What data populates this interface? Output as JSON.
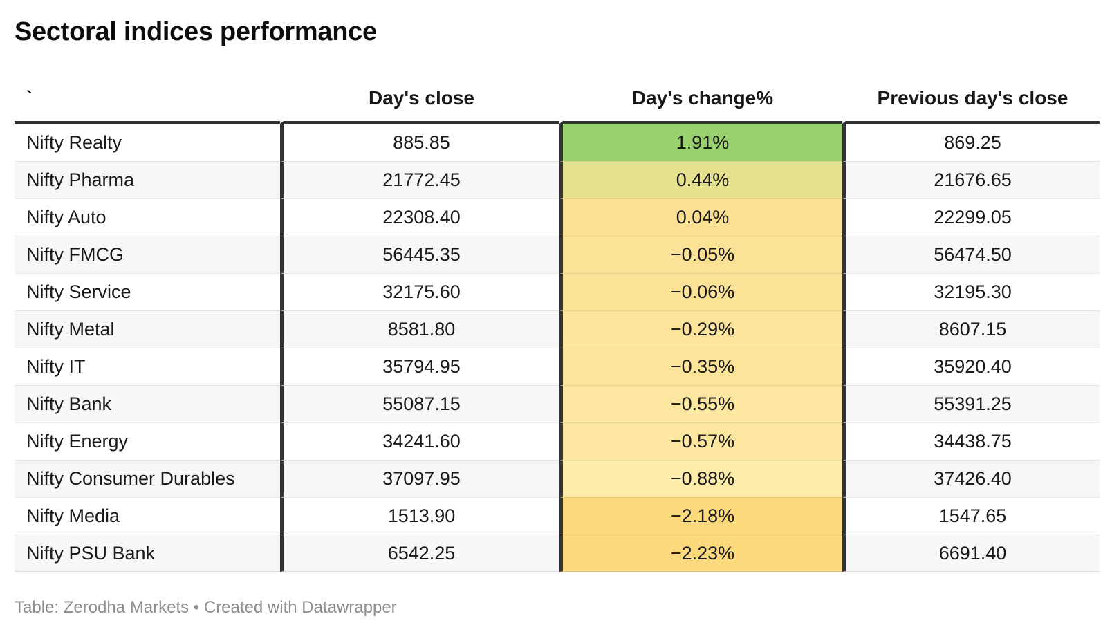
{
  "title": "Sectoral indices performance",
  "columns": {
    "name": "`",
    "close": "Day's close",
    "change": "Day's change%",
    "prev": "Previous day's close"
  },
  "rows": [
    {
      "name": "Nifty Realty",
      "close": "885.85",
      "change": "1.91%",
      "prev": "869.25",
      "change_bg": "#99D16E"
    },
    {
      "name": "Nifty Pharma",
      "close": "21772.45",
      "change": "0.44%",
      "prev": "21676.65",
      "change_bg": "#E6E18E"
    },
    {
      "name": "Nifty Auto",
      "close": "22308.40",
      "change": "0.04%",
      "prev": "22299.05",
      "change_bg": "#FBE093"
    },
    {
      "name": "Nifty FMCG",
      "close": "56445.35",
      "change": "−0.05%",
      "prev": "56474.50",
      "change_bg": "#FBE297"
    },
    {
      "name": "Nifty Service",
      "close": "32175.60",
      "change": "−0.06%",
      "prev": "32195.30",
      "change_bg": "#FBE297"
    },
    {
      "name": "Nifty Metal",
      "close": "8581.80",
      "change": "−0.29%",
      "prev": "8607.15",
      "change_bg": "#FCE49B"
    },
    {
      "name": "Nifty IT",
      "close": "35794.95",
      "change": "−0.35%",
      "prev": "35920.40",
      "change_bg": "#FCE49B"
    },
    {
      "name": "Nifty Bank",
      "close": "55087.15",
      "change": "−0.55%",
      "prev": "55391.25",
      "change_bg": "#FCE6A0"
    },
    {
      "name": "Nifty Energy",
      "close": "34241.60",
      "change": "−0.57%",
      "prev": "34438.75",
      "change_bg": "#FCE6A0"
    },
    {
      "name": "Nifty Consumer Durables",
      "close": "37097.95",
      "change": "−0.88%",
      "prev": "37426.40",
      "change_bg": "#FEEDAA"
    },
    {
      "name": "Nifty Media",
      "close": "1513.90",
      "change": "−2.18%",
      "prev": "1547.65",
      "change_bg": "#FCD97C"
    },
    {
      "name": "Nifty PSU Bank",
      "close": "6542.25",
      "change": "−2.23%",
      "prev": "6691.40",
      "change_bg": "#FCD97C"
    }
  ],
  "footer": "Table: Zerodha Markets • Created with Datawrapper",
  "colors": {
    "header_rule": "#333333",
    "column_divider": "#333333",
    "row_stripe": "#F7F7F7",
    "footer_text": "#8E8E8E",
    "heatmap_positive_green": "#99D16E",
    "heatmap_mid_yellow": "#FBE297",
    "heatmap_negative_amber": "#FCD97C"
  },
  "chart_data": {
    "type": "table",
    "title": "Sectoral indices performance",
    "columns": [
      "`",
      "Day's close",
      "Day's change%",
      "Previous day's close"
    ],
    "rows": [
      [
        "Nifty Realty",
        885.85,
        1.91,
        869.25
      ],
      [
        "Nifty Pharma",
        21772.45,
        0.44,
        21676.65
      ],
      [
        "Nifty Auto",
        22308.4,
        0.04,
        22299.05
      ],
      [
        "Nifty FMCG",
        56445.35,
        -0.05,
        56474.5
      ],
      [
        "Nifty Service",
        32175.6,
        -0.06,
        32195.3
      ],
      [
        "Nifty Metal",
        8581.8,
        -0.29,
        8607.15
      ],
      [
        "Nifty IT",
        35794.95,
        -0.35,
        35920.4
      ],
      [
        "Nifty Bank",
        55087.15,
        -0.55,
        55391.25
      ],
      [
        "Nifty Energy",
        34241.6,
        -0.57,
        34438.75
      ],
      [
        "Nifty Consumer Durables",
        37097.95,
        -0.88,
        37426.4
      ],
      [
        "Nifty Media",
        1513.9,
        -2.18,
        1547.65
      ],
      [
        "Nifty PSU Bank",
        6542.25,
        -2.23,
        6691.4
      ]
    ],
    "heatmap_column": "Day's change%",
    "source": "Zerodha Markets"
  }
}
